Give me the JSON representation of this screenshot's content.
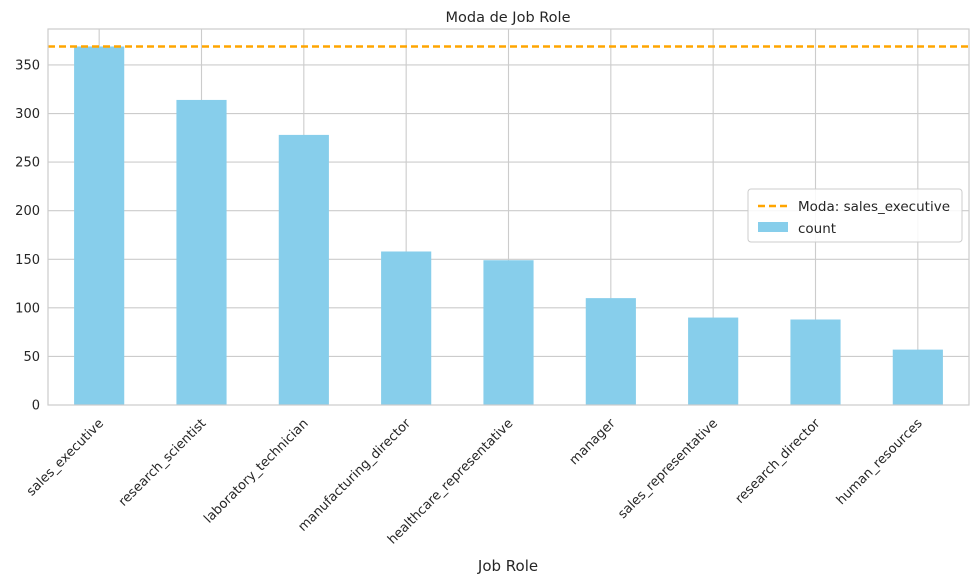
{
  "chart_data": {
    "type": "bar",
    "title": "Moda de Job Role",
    "xlabel": "Job Role",
    "ylabel": "",
    "categories": [
      "sales_executive",
      "research_scientist",
      "laboratory_technician",
      "manufacturing_director",
      "healthcare_representative",
      "manager",
      "sales_representative",
      "research_director",
      "human_resources"
    ],
    "series": [
      {
        "name": "count",
        "values": [
          369,
          314,
          278,
          158,
          149,
          110,
          90,
          88,
          57
        ],
        "color": "#87ceeb"
      }
    ],
    "reference_line": {
      "label": "Moda: sales_executive",
      "value": 369,
      "color": "#ffa500",
      "style": "dashed"
    },
    "ylim": [
      0,
      387
    ],
    "yticks": [
      0,
      50,
      100,
      150,
      200,
      250,
      300,
      350
    ],
    "grid": true,
    "legend_position": "center-right"
  }
}
